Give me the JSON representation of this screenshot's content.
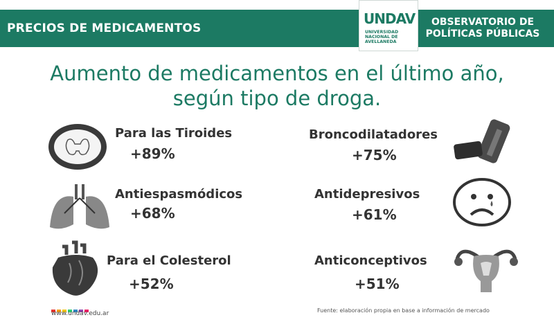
{
  "header": {
    "title": "PRECIOS DE MEDICAMENTOS",
    "right_line1": "OBSERVATORIO DE",
    "right_line2": "POLÍTICAS PÚBLICAS",
    "logo_text": "UNDAV",
    "logo_sub1": "UNIVERSIDAD",
    "logo_sub2": "NACIONAL DE",
    "logo_sub3": "AVELLANEDA"
  },
  "main_title": {
    "line1": "Aumento de medicamentos en el último año,",
    "line2": "según tipo de droga."
  },
  "items": [
    {
      "name": "Para las Tiroides",
      "value": "+89%",
      "icon": "thyroid-icon"
    },
    {
      "name": "Broncodilatadores",
      "value": "+75%",
      "icon": "inhaler-icon"
    },
    {
      "name": "Antiespasmódicos",
      "value": "+68%",
      "icon": "lungs-icon"
    },
    {
      "name": "Antidepresivos",
      "value": "+61%",
      "icon": "sad-face-icon"
    },
    {
      "name": "Para el Colesterol",
      "value": "+52%",
      "icon": "heart-icon"
    },
    {
      "name": "Anticonceptivos",
      "value": "+51%",
      "icon": "uterus-icon"
    }
  ],
  "footer": {
    "url": "www.undav.edu.ar",
    "source": "Fuente: elaboración propia en base a información de mercado",
    "dot_colors": [
      "#e5352f",
      "#f39c12",
      "#f1c40f",
      "#2ecc71",
      "#2e86c1",
      "#8e44ad",
      "#e91e63"
    ]
  },
  "colors": {
    "brand": "#1c7a63",
    "text": "#333333"
  }
}
